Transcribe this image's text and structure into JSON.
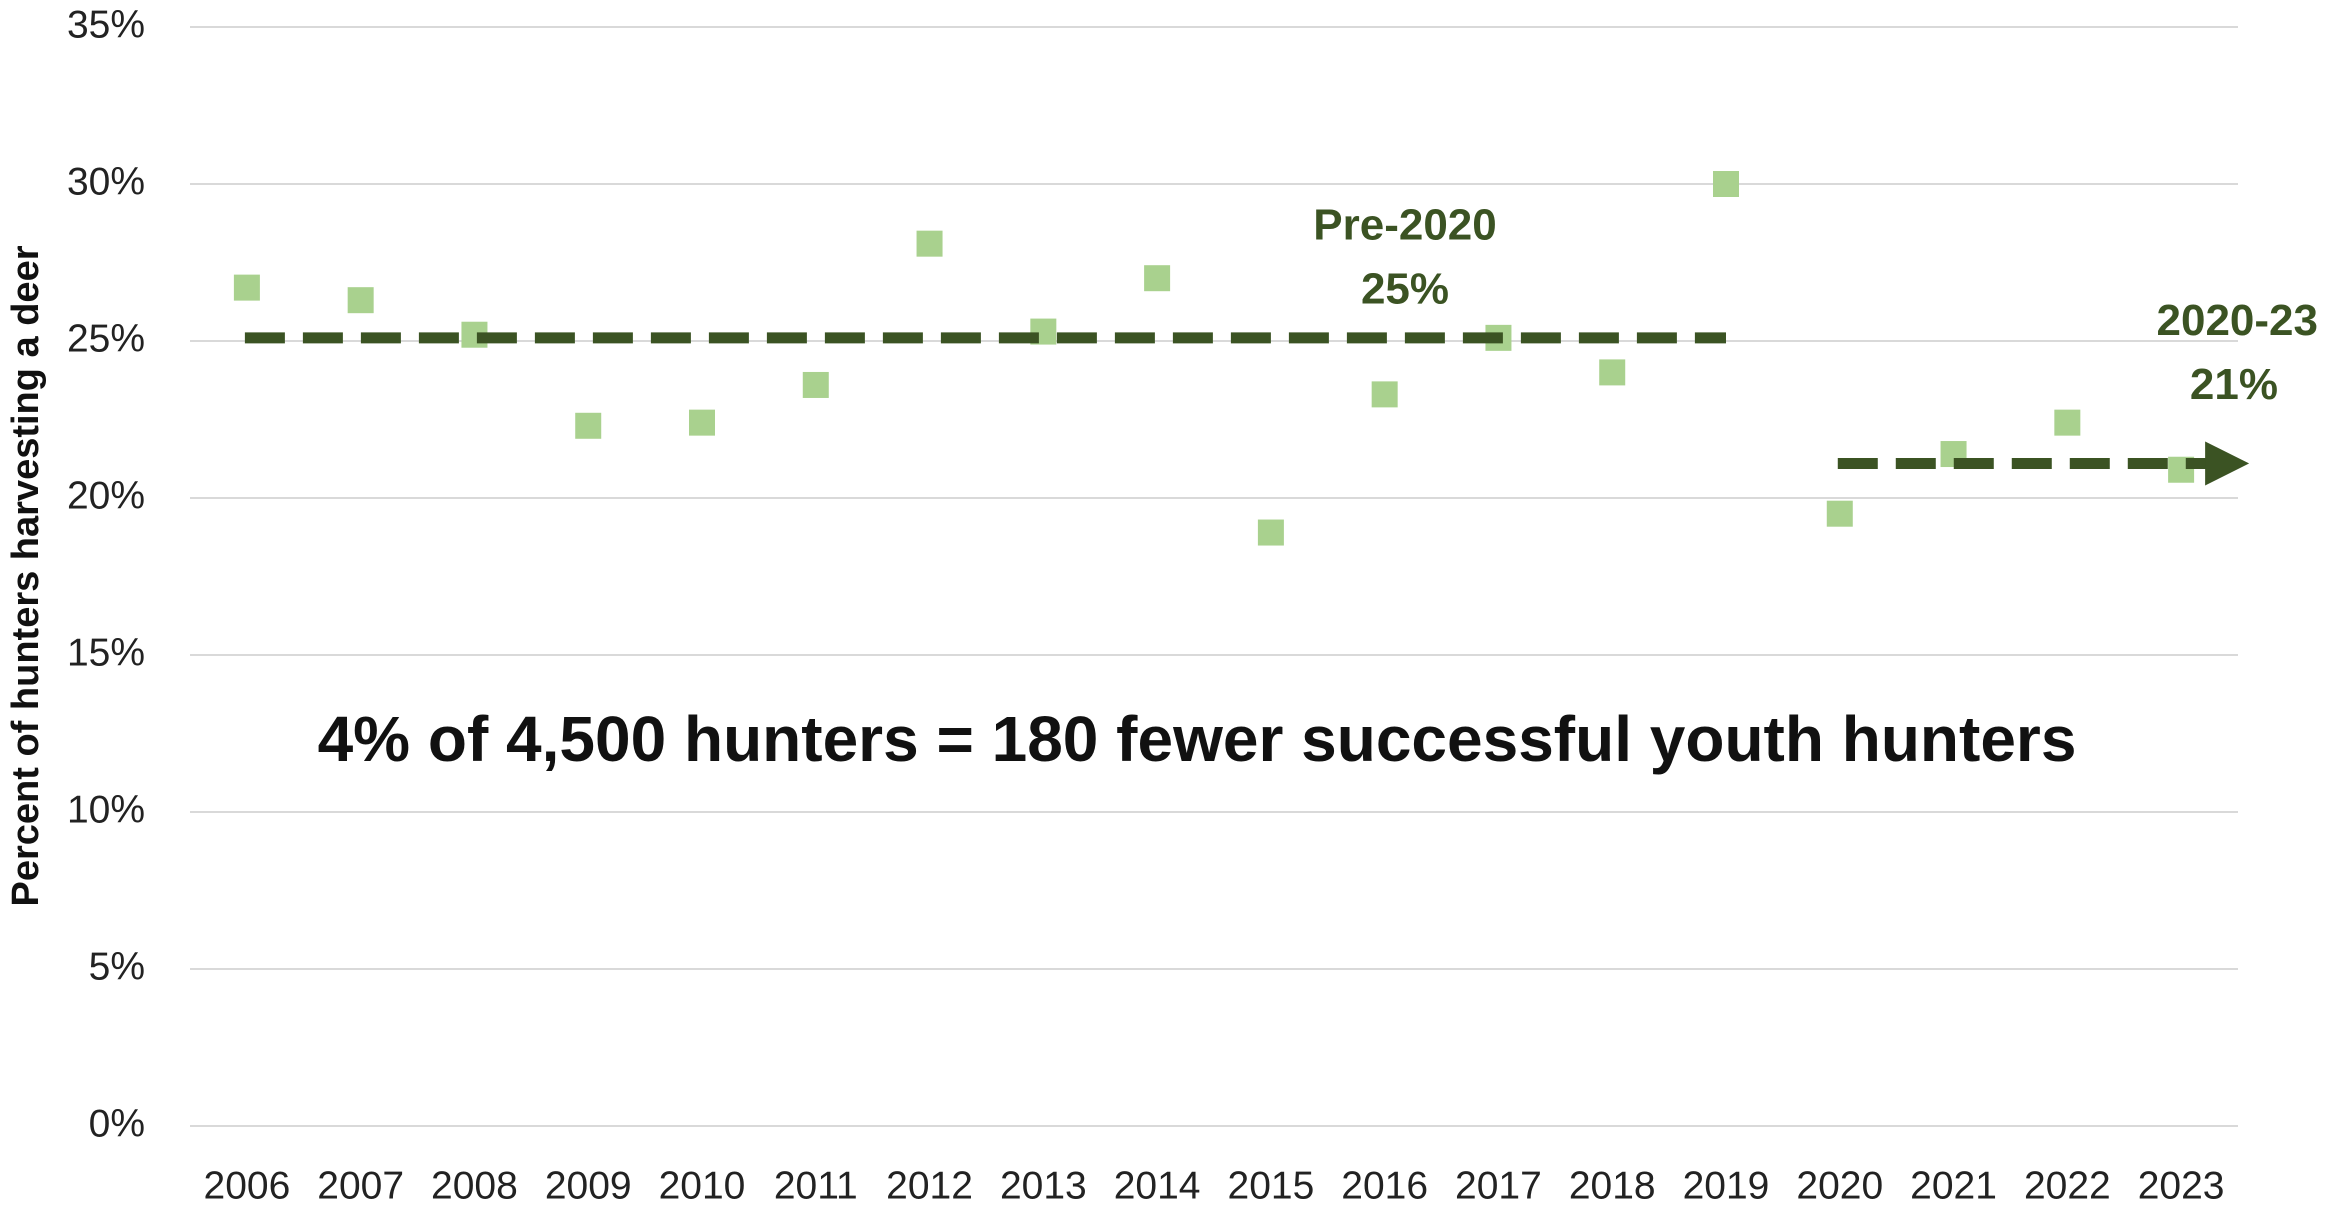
{
  "chart_data": {
    "type": "scatter",
    "y_label": "Percent of hunters harvesting a deer",
    "categories": [
      "2006",
      "2007",
      "2008",
      "2009",
      "2010",
      "2011",
      "2012",
      "2013",
      "2014",
      "2015",
      "2016",
      "2017",
      "2018",
      "2019",
      "2020",
      "2021",
      "2022",
      "2023"
    ],
    "values": [
      26.7,
      26.3,
      25.2,
      22.3,
      22.4,
      23.6,
      28.1,
      25.3,
      27.0,
      18.9,
      23.3,
      25.1,
      24.0,
      30.0,
      19.5,
      21.4,
      22.4,
      20.9
    ],
    "color": "#a9d18e",
    "ylim": [
      0,
      35
    ],
    "yticks": [
      {
        "value": 0,
        "label": "0%"
      },
      {
        "value": 5,
        "label": "5%"
      },
      {
        "value": 10,
        "label": "10%"
      },
      {
        "value": 15,
        "label": "15%"
      },
      {
        "value": 20,
        "label": "20%"
      },
      {
        "value": 25,
        "label": "25%"
      },
      {
        "value": 30,
        "label": "30%"
      },
      {
        "value": 35,
        "label": "35%"
      }
    ],
    "grid": true,
    "reference_lines": [
      {
        "name": "Pre-2020",
        "value": 25.1,
        "value_label": "25%",
        "from": "2006",
        "to": "2019",
        "color": "#3b5323",
        "arrow": false
      },
      {
        "name": "2020-23",
        "value": 21.1,
        "value_label": "21%",
        "from": "2020",
        "to": "2023",
        "color": "#3b5323",
        "arrow": true
      }
    ],
    "annotation": "4% of 4,500 hunters = 180 fewer successful youth hunters"
  }
}
